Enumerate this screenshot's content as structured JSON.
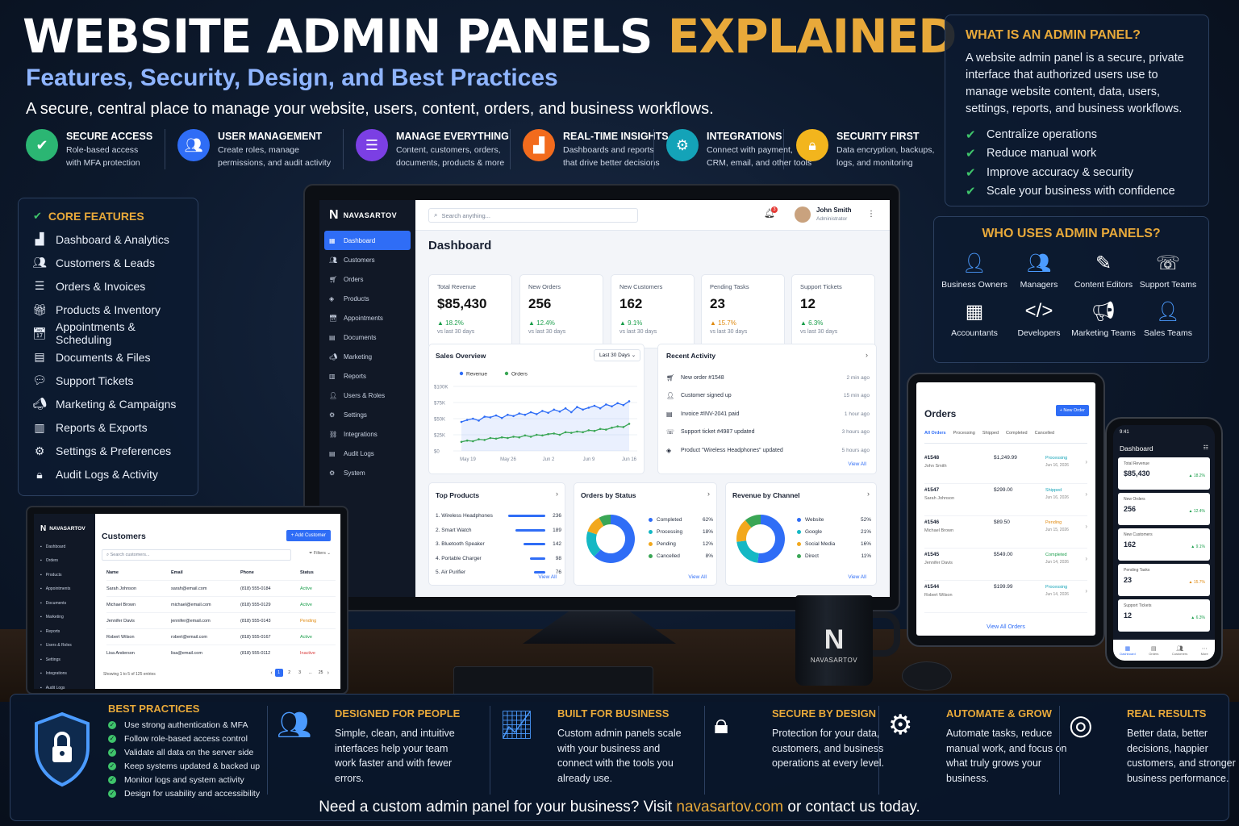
{
  "header": {
    "title_part1": "WEBSITE ADMIN PANELS",
    "title_part2": "EXPLAINED",
    "subtitle": "Features, Security, Design, and Best Practices",
    "tagline": "A secure, central place to manage your website, users, content, orders, and business workflows."
  },
  "top_features": [
    {
      "icon": "shield-check-icon",
      "title": "SECURE ACCESS",
      "desc1": "Role-based access",
      "desc2": "with MFA protection",
      "color": "#2bb673"
    },
    {
      "icon": "users-icon",
      "title": "USER MANAGEMENT",
      "desc1": "Create roles, manage",
      "desc2": "permissions, and audit activity",
      "color": "#2f6df6"
    },
    {
      "icon": "database-icon",
      "title": "MANAGE EVERYTHING",
      "desc1": "Content, customers, orders,",
      "desc2": "documents, products & more",
      "color": "#7b3fe4"
    },
    {
      "icon": "bar-chart-icon",
      "title": "REAL-TIME INSIGHTS",
      "desc1": "Dashboards and reports",
      "desc2": "that drive better decisions",
      "color": "#f26b1d"
    },
    {
      "icon": "gear-icon",
      "title": "INTEGRATIONS",
      "desc1": "Connect with payment,",
      "desc2": "CRM, email, and other tools",
      "color": "#14a3b8"
    },
    {
      "icon": "lock-icon",
      "title": "SECURITY FIRST",
      "desc1": "Data encryption, backups,",
      "desc2": "logs, and monitoring",
      "color": "#f2b51d"
    }
  ],
  "what_is": {
    "title": "WHAT IS AN ADMIN PANEL?",
    "body": "A website admin panel is a secure, private interface that authorized users use to manage website content, data, users, settings, reports, and business workflows.",
    "checks": [
      "Centralize operations",
      "Reduce manual work",
      "Improve accuracy & security",
      "Scale your business with confidence"
    ]
  },
  "who_uses": {
    "title": "WHO USES ADMIN PANELS?",
    "roles": [
      {
        "label": "Business Owners",
        "icon": "person-icon"
      },
      {
        "label": "Managers",
        "icon": "team-icon"
      },
      {
        "label": "Content Editors",
        "icon": "edit-icon"
      },
      {
        "label": "Support Teams",
        "icon": "support-icon"
      },
      {
        "label": "Accountants",
        "icon": "calculator-icon"
      },
      {
        "label": "Developers",
        "icon": "code-icon"
      },
      {
        "label": "Marketing Teams",
        "icon": "megaphone-icon"
      },
      {
        "label": "Sales Teams",
        "icon": "sales-icon"
      }
    ]
  },
  "core_features": {
    "title": "CORE FEATURES",
    "items": [
      "Dashboard & Analytics",
      "Customers & Leads",
      "Orders & Invoices",
      "Products & Inventory",
      "Appointments & Scheduling",
      "Documents & Files",
      "Support Tickets",
      "Marketing & Campaigns",
      "Reports & Exports",
      "Settings & Preferences",
      "Audit Logs & Activity"
    ]
  },
  "dashboard": {
    "brand": "NAVASARTOV",
    "search_placeholder": "Search anything...",
    "user_name": "John Smith",
    "user_role": "Administrator",
    "notif_count": "3",
    "page_title": "Dashboard",
    "sidebar": [
      "Dashboard",
      "Customers",
      "Orders",
      "Products",
      "Appointments",
      "Documents",
      "Marketing",
      "Reports",
      "Users & Roles",
      "Settings",
      "Integrations",
      "Audit Logs",
      "System"
    ],
    "kpis": [
      {
        "label": "Total Revenue",
        "value": "$85,430",
        "change": "▲ 18.2%",
        "period": "vs last 30 days"
      },
      {
        "label": "New Orders",
        "value": "256",
        "change": "▲ 12.4%",
        "period": "vs last 30 days"
      },
      {
        "label": "New Customers",
        "value": "162",
        "change": "▲ 9.1%",
        "period": "vs last 30 days"
      },
      {
        "label": "Pending Tasks",
        "value": "23",
        "change": "▲ 15.7%",
        "period": "vs last 30 days"
      },
      {
        "label": "Support Tickets",
        "value": "12",
        "change": "▲ 6.3%",
        "period": "vs last 30 days"
      }
    ],
    "sales": {
      "title": "Sales Overview",
      "range": "Last 30 Days",
      "legend": [
        "Revenue",
        "Orders"
      ],
      "y_ticks": [
        "$100K",
        "$75K",
        "$50K",
        "$25K",
        "$0"
      ],
      "x_ticks": [
        "May 19",
        "May 26",
        "Jun 2",
        "Jun 9",
        "Jun 16"
      ]
    },
    "activity": {
      "title": "Recent Activity",
      "view_all": "View All",
      "items": [
        {
          "text": "New order #1548",
          "time": "2 min ago"
        },
        {
          "text": "Customer signed up",
          "time": "15 min ago"
        },
        {
          "text": "Invoice #INV-2041 paid",
          "time": "1 hour ago"
        },
        {
          "text": "Support ticket #4987 updated",
          "time": "3 hours ago"
        },
        {
          "text": "Product \"Wireless Headphones\" updated",
          "time": "5 hours ago"
        }
      ]
    },
    "top_products": {
      "title": "Top Products",
      "view_all": "View All",
      "items": [
        {
          "name": "1. Wireless Headphones",
          "value": "236",
          "share": 1.0
        },
        {
          "name": "2. Smart Watch",
          "value": "189",
          "share": 0.8
        },
        {
          "name": "3. Bluetooth Speaker",
          "value": "142",
          "share": 0.6
        },
        {
          "name": "4. Portable Charger",
          "value": "98",
          "share": 0.42
        },
        {
          "name": "5. Air Purifier",
          "value": "76",
          "share": 0.32
        }
      ]
    },
    "orders_status": {
      "title": "Orders by Status",
      "view_all": "View All",
      "items": [
        {
          "label": "Completed",
          "pct": "62%",
          "value": 62,
          "color": "#2f6df6"
        },
        {
          "label": "Processing",
          "pct": "18%",
          "value": 18,
          "color": "#14b8c4"
        },
        {
          "label": "Pending",
          "pct": "12%",
          "value": 12,
          "color": "#f2a81d"
        },
        {
          "label": "Cancelled",
          "pct": "8%",
          "value": 8,
          "color": "#3aa655"
        }
      ]
    },
    "revenue_channel": {
      "title": "Revenue by Channel",
      "view_all": "View All",
      "items": [
        {
          "label": "Website",
          "pct": "52%",
          "value": 52,
          "color": "#2f6df6"
        },
        {
          "label": "Google",
          "pct": "21%",
          "value": 21,
          "color": "#14b8c4"
        },
        {
          "label": "Social Media",
          "pct": "16%",
          "value": 16,
          "color": "#f2a81d"
        },
        {
          "label": "Direct",
          "pct": "11%",
          "value": 11,
          "color": "#3aa655"
        }
      ]
    }
  },
  "laptop": {
    "brand": "NAVASARTOV",
    "title": "Customers",
    "add_button": "+ Add Customer",
    "search_placeholder": "Search customers...",
    "filters": "Filters",
    "sidebar": [
      "Dashboard",
      "Orders",
      "Products",
      "Appointments",
      "Documents",
      "Marketing",
      "Reports",
      "Users & Roles",
      "Settings",
      "Integrations",
      "Audit Logs"
    ],
    "columns": [
      "Name",
      "Email",
      "Phone",
      "Status"
    ],
    "rows": [
      {
        "name": "Sarah Johnson",
        "email": "sarah@email.com",
        "phone": "(818) 555-0184",
        "status": "Active",
        "color": "#1a9e4b"
      },
      {
        "name": "Michael Brown",
        "email": "michael@email.com",
        "phone": "(818) 555-0129",
        "status": "Active",
        "color": "#1a9e4b"
      },
      {
        "name": "Jennifer Davis",
        "email": "jennifer@email.com",
        "phone": "(818) 555-0143",
        "status": "Pending",
        "color": "#e08a10"
      },
      {
        "name": "Robert Wilson",
        "email": "robert@email.com",
        "phone": "(818) 555-0167",
        "status": "Active",
        "color": "#1a9e4b"
      },
      {
        "name": "Lisa Anderson",
        "email": "lisa@email.com",
        "phone": "(818) 555-0112",
        "status": "Inactive",
        "color": "#d93b3b"
      }
    ],
    "showing": "Showing 1 to 5 of 125 entries",
    "pages": [
      "1",
      "2",
      "3",
      "...",
      "25"
    ]
  },
  "tablet": {
    "title": "Orders",
    "new_button": "+ New Order",
    "tabs": [
      "All Orders",
      "Processing",
      "Shipped",
      "Completed",
      "Cancelled"
    ],
    "orders": [
      {
        "id": "#1548",
        "name": "John Smith",
        "amount": "$1,249.99",
        "status": "Processing",
        "date": "Jun 16, 2026",
        "color": "#14a3b8"
      },
      {
        "id": "#1547",
        "name": "Sarah Johnson",
        "amount": "$299.00",
        "status": "Shipped",
        "date": "Jun 16, 2026",
        "color": "#14a3b8"
      },
      {
        "id": "#1546",
        "name": "Michael Brown",
        "amount": "$89.50",
        "status": "Pending",
        "date": "Jun 15, 2026",
        "color": "#e08a10"
      },
      {
        "id": "#1545",
        "name": "Jennifer Davis",
        "amount": "$549.00",
        "status": "Completed",
        "date": "Jun 14, 2026",
        "color": "#1a9e4b"
      },
      {
        "id": "#1544",
        "name": "Robert Wilson",
        "amount": "$199.99",
        "status": "Processing",
        "date": "Jun 14, 2026",
        "color": "#14a3b8"
      }
    ],
    "view_all": "View All Orders"
  },
  "phone": {
    "time": "9:41",
    "title": "Dashboard",
    "cards": [
      {
        "label": "Total Revenue",
        "value": "$85,430",
        "change": "▲ 18.2%"
      },
      {
        "label": "New Orders",
        "value": "256",
        "change": "▲ 12.4%"
      },
      {
        "label": "New Customers",
        "value": "162",
        "change": "▲ 9.1%"
      },
      {
        "label": "Pending Tasks",
        "value": "23",
        "change": "▲ 15.7%"
      },
      {
        "label": "Support Tickets",
        "value": "12",
        "change": "▲ 6.3%"
      }
    ],
    "nav": [
      "Dashboard",
      "Orders",
      "Customers",
      "More"
    ]
  },
  "mug": {
    "brand": "NAVASARTOV"
  },
  "bottom": {
    "best_practices": {
      "title": "BEST PRACTICES",
      "items": [
        "Use strong authentication & MFA",
        "Follow role-based access control",
        "Validate all data on the server side",
        "Keep systems updated & backed up",
        "Monitor logs and system activity",
        "Design for usability and accessibility"
      ]
    },
    "columns": [
      {
        "title": "DESIGNED FOR PEOPLE",
        "desc": "Simple, clean, and intuitive interfaces help your team work faster and with fewer errors.",
        "icon": "people-icon"
      },
      {
        "title": "BUILT FOR BUSINESS",
        "desc": "Custom admin panels scale with your business and connect with the tools you already use.",
        "icon": "growth-chart-icon"
      },
      {
        "title": "SECURE BY DESIGN",
        "desc": "Protection for your data, customers, and business operations at every level.",
        "icon": "padlock-icon"
      },
      {
        "title": "AUTOMATE & GROW",
        "desc": "Automate tasks, reduce manual work, and focus on what truly grows your business.",
        "icon": "cog-icon"
      },
      {
        "title": "REAL RESULTS",
        "desc": "Better data, better decisions, happier customers, and stronger business performance.",
        "icon": "target-icon"
      }
    ],
    "cta_prefix": "Need a custom admin panel for your business?  Visit",
    "cta_url": "navasartov.com",
    "cta_suffix": "or contact us today."
  },
  "chart_data": {
    "type": "line",
    "title": "Sales Overview",
    "x": [
      "May 19",
      "May 20",
      "May 21",
      "May 22",
      "May 23",
      "May 24",
      "May 25",
      "May 26",
      "May 27",
      "May 28",
      "May 29",
      "May 30",
      "May 31",
      "Jun 1",
      "Jun 2",
      "Jun 3",
      "Jun 4",
      "Jun 5",
      "Jun 6",
      "Jun 7",
      "Jun 8",
      "Jun 9",
      "Jun 10",
      "Jun 11",
      "Jun 12",
      "Jun 13",
      "Jun 14",
      "Jun 15",
      "Jun 16",
      "Jun 17"
    ],
    "series": [
      {
        "name": "Revenue",
        "values": [
          45,
          48,
          50,
          47,
          53,
          52,
          55,
          51,
          56,
          54,
          58,
          56,
          60,
          57,
          62,
          59,
          64,
          61,
          66,
          60,
          68,
          64,
          67,
          70,
          66,
          72,
          69,
          74,
          71,
          77
        ]
      },
      {
        "name": "Orders",
        "values": [
          14,
          16,
          15,
          18,
          17,
          20,
          19,
          21,
          20,
          22,
          21,
          24,
          22,
          25,
          24,
          26,
          27,
          25,
          29,
          28,
          30,
          29,
          32,
          31,
          34,
          33,
          36,
          38,
          37,
          42
        ]
      }
    ],
    "ylim": [
      0,
      100
    ],
    "y_unit": "K",
    "legend": "top-left"
  }
}
